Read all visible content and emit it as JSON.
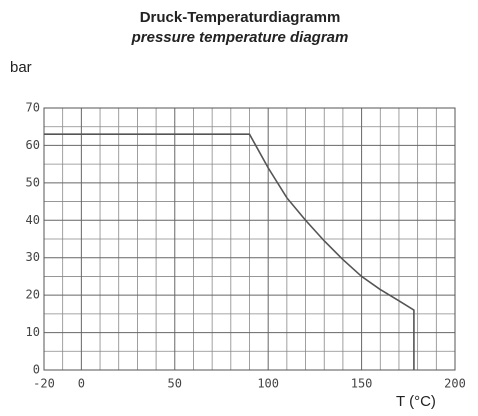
{
  "chart_data": {
    "type": "line",
    "title": "Druck-Temperaturdiagramm",
    "subtitle": "pressure temperature diagram",
    "y_label": "bar",
    "x_label": "T (°C)",
    "x": [
      -20,
      90,
      100,
      110,
      120,
      130,
      140,
      150,
      160,
      170,
      178,
      178
    ],
    "series": [
      {
        "name": "pressure",
        "color": "#555555",
        "values": [
          63,
          63,
          54,
          46,
          40,
          34.5,
          29.5,
          25,
          21.5,
          18.5,
          16,
          0
        ]
      }
    ],
    "xlim": [
      -20,
      200
    ],
    "xticks": [
      -20,
      0,
      50,
      100,
      150,
      200
    ],
    "ylim": [
      0,
      70
    ],
    "yticks": [
      0,
      10,
      20,
      30,
      40,
      50,
      60,
      70
    ],
    "grid": true
  }
}
